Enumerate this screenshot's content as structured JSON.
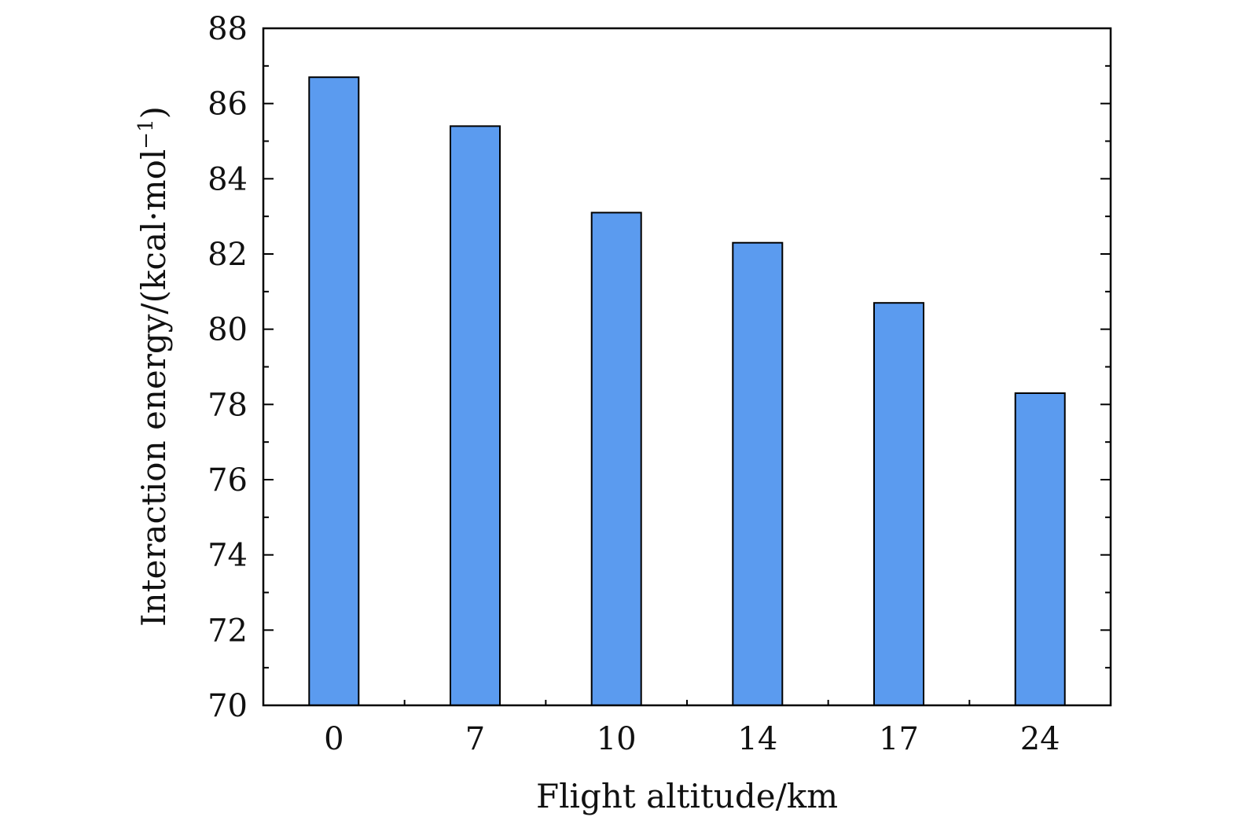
{
  "chart_data": {
    "type": "bar",
    "categories": [
      "0",
      "7",
      "10",
      "14",
      "17",
      "24"
    ],
    "values": [
      86.7,
      85.4,
      83.1,
      82.3,
      80.7,
      78.3
    ],
    "xlabel": "Flight altitude/km",
    "ylabel": {
      "main": "Interaction energy/(kcal·mol",
      "superscript": "−1",
      "close": ")"
    },
    "ylim": [
      70,
      88
    ],
    "yticks": [
      "70",
      "72",
      "74",
      "76",
      "78",
      "80",
      "82",
      "84",
      "86",
      "88"
    ],
    "grid": false,
    "legend": "none",
    "colors": {
      "bar_fill": "#5b9bef",
      "bar_stroke": "#000000",
      "axis": "#000000"
    }
  }
}
